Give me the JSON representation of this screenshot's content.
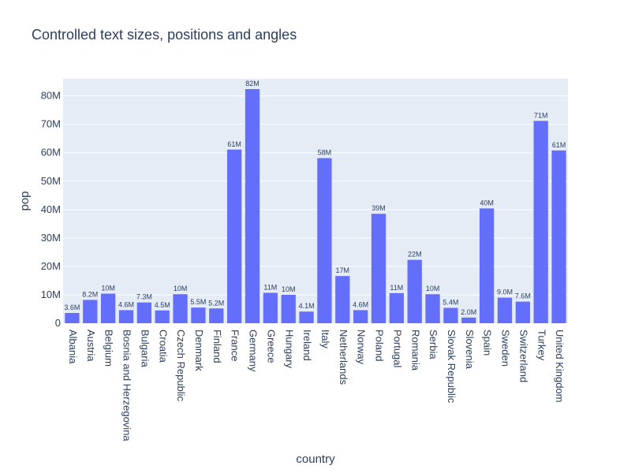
{
  "chart_data": {
    "type": "bar",
    "title": "Controlled text sizes, positions and angles",
    "xlabel": "country",
    "ylabel": "pop",
    "ylim": [
      0,
      86000000
    ],
    "grid": true,
    "y_ticks": [
      {
        "value": 0,
        "label": "0"
      },
      {
        "value": 10000000,
        "label": "10M"
      },
      {
        "value": 20000000,
        "label": "20M"
      },
      {
        "value": 30000000,
        "label": "30M"
      },
      {
        "value": 40000000,
        "label": "40M"
      },
      {
        "value": 50000000,
        "label": "50M"
      },
      {
        "value": 60000000,
        "label": "60M"
      },
      {
        "value": 70000000,
        "label": "70M"
      },
      {
        "value": 80000000,
        "label": "80M"
      }
    ],
    "categories": [
      "Albania",
      "Austria",
      "Belgium",
      "Bosnia and Herzegovina",
      "Bulgaria",
      "Croatia",
      "Czech Republic",
      "Denmark",
      "Finland",
      "France",
      "Germany",
      "Greece",
      "Hungary",
      "Ireland",
      "Italy",
      "Netherlands",
      "Norway",
      "Poland",
      "Portugal",
      "Romania",
      "Serbia",
      "Slovak Republic",
      "Slovenia",
      "Spain",
      "Sweden",
      "Switzerland",
      "Turkey",
      "United Kingdom"
    ],
    "values": [
      3600000,
      8200000,
      10400000,
      4600000,
      7300000,
      4500000,
      10200000,
      5500000,
      5200000,
      61100000,
      82400000,
      10700000,
      10000000,
      4100000,
      58100000,
      16600000,
      4600000,
      38500000,
      10600000,
      22300000,
      10200000,
      5400000,
      2000000,
      40400000,
      9000000,
      7600000,
      71200000,
      60800000
    ],
    "value_labels": [
      "3.6M",
      "8.2M",
      "10M",
      "4.6M",
      "7.3M",
      "4.5M",
      "10M",
      "5.5M",
      "5.2M",
      "61M",
      "82M",
      "11M",
      "10M",
      "4.1M",
      "58M",
      "17M",
      "4.6M",
      "39M",
      "11M",
      "22M",
      "10M",
      "5.4M",
      "2.0M",
      "40M",
      "9.0M",
      "7.6M",
      "71M",
      "61M"
    ],
    "colors": {
      "bar": "#636efa",
      "plot_bg": "#e5ecf6",
      "grid": "#ffffff",
      "text": "#2a3f5f"
    }
  }
}
